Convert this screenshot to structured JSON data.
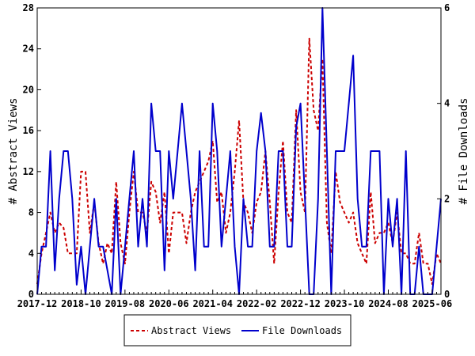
{
  "chart_data": {
    "type": "line",
    "title": "",
    "xlabel": "",
    "ylabel": "# Abstract Views",
    "ylabel_right": "# File Downloads",
    "ylim": [
      0,
      28
    ],
    "ylim_right": [
      0,
      6
    ],
    "yticks": [
      "0",
      "4",
      "8",
      "12",
      "16",
      "20",
      "24",
      "28"
    ],
    "yticks_right": [
      "0",
      "2",
      "4",
      "6"
    ],
    "x_start": "2017-12",
    "x_tick_labels": [
      "2017-12",
      "2018-10",
      "2019-08",
      "2020-06",
      "2021-04",
      "2022-02",
      "2022-12",
      "2023-10",
      "2024-08",
      "2025-06"
    ],
    "legend_position": "bottom",
    "series": [
      {
        "name": "Abstract Views",
        "axis": "left",
        "color": "#cc0000",
        "style": "dashed",
        "values": [
          1,
          4,
          6,
          8,
          6,
          7,
          6.5,
          4,
          4,
          4,
          12,
          12,
          6,
          9,
          5,
          3,
          5,
          4,
          11,
          5,
          3,
          8,
          12,
          8,
          8,
          6,
          11,
          10,
          7,
          10,
          4,
          8,
          8,
          8,
          5,
          8,
          10,
          11,
          12,
          13,
          15,
          9,
          10,
          6,
          8,
          12,
          17,
          9,
          8,
          6,
          9,
          10,
          14,
          9,
          3,
          10,
          15,
          8,
          7,
          18,
          10,
          8,
          25,
          18,
          16,
          23,
          7,
          4,
          12,
          9,
          8,
          7,
          8,
          5,
          4,
          3,
          10,
          5,
          6,
          6,
          7,
          5,
          8,
          4,
          4,
          3,
          3,
          6,
          3,
          3,
          1,
          4,
          3
        ]
      },
      {
        "name": "File Downloads",
        "axis": "right",
        "color": "#0000cc",
        "style": "solid",
        "values": [
          0,
          1,
          1,
          3,
          0.5,
          2,
          3,
          3,
          2,
          0.2,
          1,
          0,
          1,
          2,
          1,
          1,
          0.5,
          0,
          2,
          0,
          1,
          2,
          3,
          1,
          2,
          1,
          4,
          3,
          3,
          0.5,
          3,
          2,
          3,
          4,
          3,
          2,
          0.5,
          3,
          1,
          1,
          4,
          3,
          1,
          2,
          3,
          1,
          0,
          2,
          1,
          1,
          3,
          3.8,
          3,
          1,
          1,
          3,
          3,
          1,
          1,
          3.5,
          4,
          2,
          0,
          0,
          2,
          6,
          3,
          0,
          3,
          3,
          3,
          4,
          5,
          2,
          1,
          1,
          3,
          3,
          3,
          0,
          2,
          1,
          2,
          0,
          3,
          0,
          0,
          1,
          0,
          0,
          0,
          1,
          2
        ]
      }
    ]
  }
}
